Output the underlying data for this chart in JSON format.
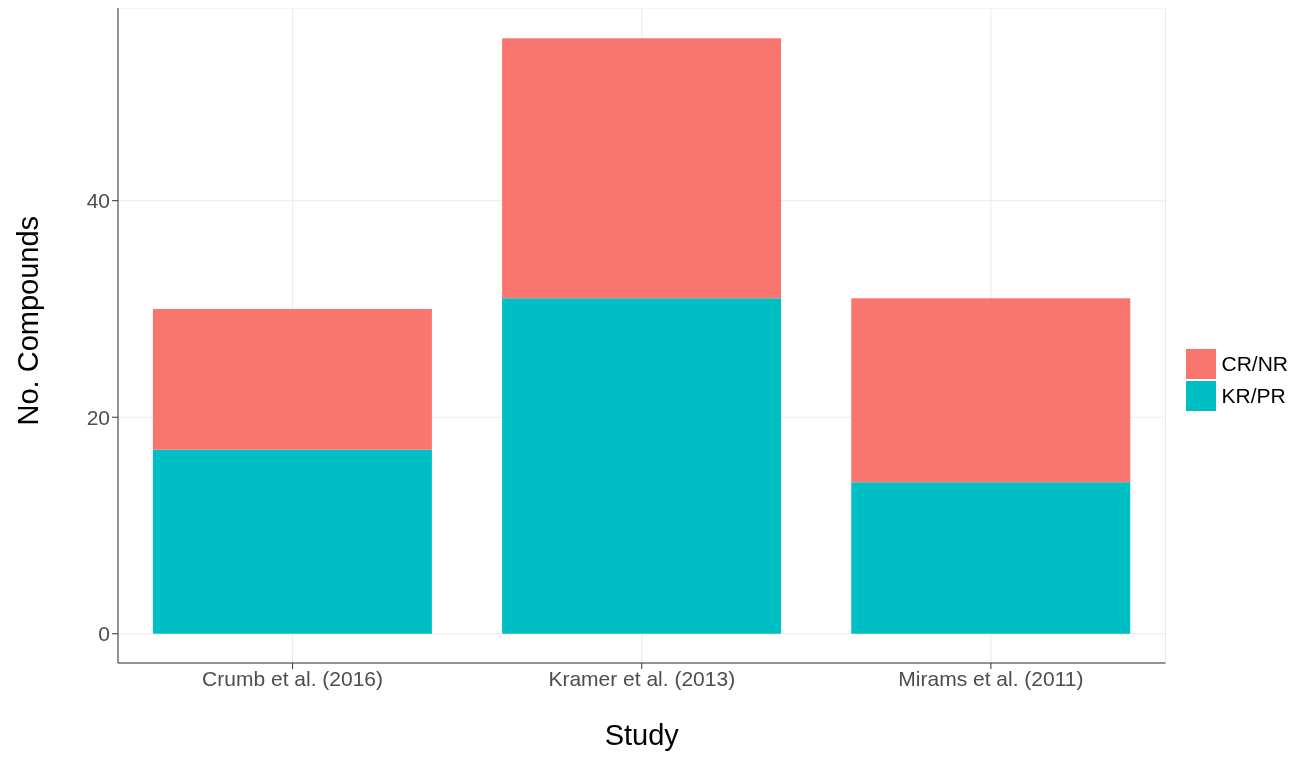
{
  "chart_data": {
    "type": "bar",
    "stacked": true,
    "xlabel": "Study",
    "ylabel": "No. Compounds",
    "categories": [
      "Crumb et al. (2016)",
      "Kramer et al. (2013)",
      "Mirams et al. (2011)"
    ],
    "series": [
      {
        "name": "KR/PR",
        "color": "#00bfc4",
        "values": [
          17,
          31,
          14
        ]
      },
      {
        "name": "CR/NR",
        "color": "#f8766d",
        "values": [
          13,
          24,
          17
        ]
      }
    ],
    "ylim": [
      -2.7,
      57.8
    ],
    "yticks": [
      0,
      20,
      40
    ],
    "grid": true,
    "legend": "right"
  }
}
